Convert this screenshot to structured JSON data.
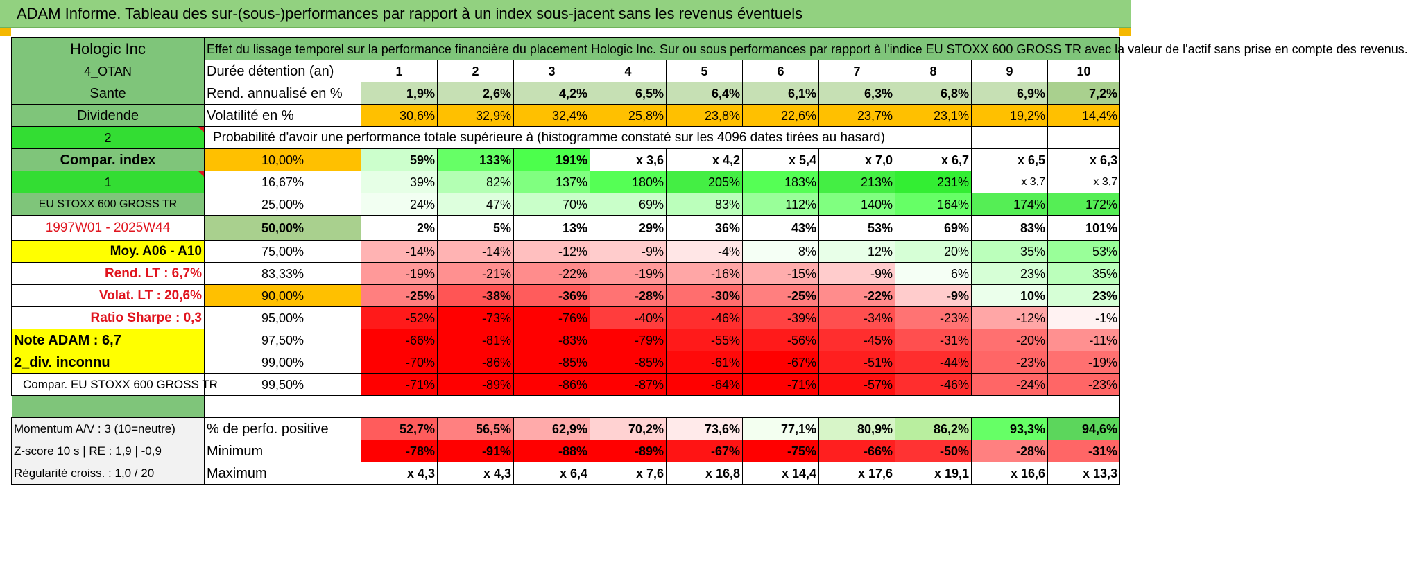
{
  "title": "ADAM Informe. Tableau des sur-(sous-)performances par rapport à un index sous-jacent sans les revenus éventuels",
  "company": "Hologic Inc",
  "description": "Effet du lissage temporel sur la performance financière du placement Hologic Inc. Sur ou sous performances par rapport à l'indice EU STOXX 600 GROSS TR avec la valeur de l'actif sans prise en compte des revenus.",
  "duration": {
    "side_label": "4_OTAN",
    "label": "Durée détention (an)",
    "years": [
      "1",
      "2",
      "3",
      "4",
      "5",
      "6",
      "7",
      "8",
      "9",
      "10"
    ]
  },
  "rend": {
    "side_label": "Sante",
    "label": "Rend. annualisé en %",
    "values": [
      "1,9%",
      "2,6%",
      "4,2%",
      "6,5%",
      "6,4%",
      "6,1%",
      "6,3%",
      "6,8%",
      "6,9%",
      "7,2%"
    ]
  },
  "vol": {
    "side_label": "Dividende",
    "label": "Volatilité en %",
    "values": [
      "30,6%",
      "32,9%",
      "32,4%",
      "25,8%",
      "23,8%",
      "22,6%",
      "23,7%",
      "23,1%",
      "19,2%",
      "14,4%"
    ]
  },
  "prob": {
    "side_label": "2",
    "label": "Probabilité d'avoir une performance totale supérieure à (histogramme constaté sur les 4096 dates tirées au hasard)"
  },
  "rows": [
    {
      "side": "Compar. index",
      "pct": "10,00%",
      "values": [
        "59%",
        "133%",
        "191%",
        "x 3,6",
        "x 4,2",
        "x 5,4",
        "x 7,0",
        "x 6,7",
        "x 6,5",
        "x 6,3"
      ]
    },
    {
      "side": "1",
      "pct": "16,67%",
      "values": [
        "39%",
        "82%",
        "137%",
        "180%",
        "205%",
        "183%",
        "213%",
        "231%",
        "x 3,7",
        "x 3,7"
      ]
    },
    {
      "side": "EU STOXX 600 GROSS TR",
      "pct": "25,00%",
      "values": [
        "24%",
        "47%",
        "70%",
        "69%",
        "83%",
        "112%",
        "140%",
        "164%",
        "174%",
        "172%"
      ]
    },
    {
      "side": "1997W01 - 2025W44",
      "pct": "50,00%",
      "values": [
        "2%",
        "5%",
        "13%",
        "29%",
        "36%",
        "43%",
        "53%",
        "69%",
        "83%",
        "101%"
      ]
    },
    {
      "side": "Moy. A06 - A10",
      "pct": "75,00%",
      "values": [
        "-14%",
        "-14%",
        "-12%",
        "-9%",
        "-4%",
        "8%",
        "12%",
        "20%",
        "35%",
        "53%"
      ]
    },
    {
      "side": "Rend. LT :    6,7%",
      "pct": "83,33%",
      "values": [
        "-19%",
        "-21%",
        "-22%",
        "-19%",
        "-16%",
        "-15%",
        "-9%",
        "6%",
        "23%",
        "35%"
      ]
    },
    {
      "side": "Volat. LT :    20,6%",
      "pct": "90,00%",
      "values": [
        "-25%",
        "-38%",
        "-36%",
        "-28%",
        "-30%",
        "-25%",
        "-22%",
        "-9%",
        "10%",
        "23%"
      ]
    },
    {
      "side": "Ratio Sharpe :    0,3",
      "pct": "95,00%",
      "values": [
        "-52%",
        "-73%",
        "-76%",
        "-40%",
        "-46%",
        "-39%",
        "-34%",
        "-23%",
        "-12%",
        "-1%"
      ]
    },
    {
      "side": "Note ADAM : 6,7",
      "pct": "97,50%",
      "values": [
        "-66%",
        "-81%",
        "-83%",
        "-79%",
        "-55%",
        "-56%",
        "-45%",
        "-31%",
        "-20%",
        "-11%"
      ]
    },
    {
      "side": "2_div. inconnu",
      "pct": "99,00%",
      "values": [
        "-70%",
        "-86%",
        "-85%",
        "-85%",
        "-61%",
        "-67%",
        "-51%",
        "-44%",
        "-23%",
        "-19%"
      ]
    },
    {
      "side": "Compar. EU STOXX 600 GROSS TR",
      "pct": "99,50%",
      "values": [
        "-71%",
        "-89%",
        "-86%",
        "-87%",
        "-64%",
        "-71%",
        "-57%",
        "-46%",
        "-24%",
        "-23%"
      ]
    }
  ],
  "summary": [
    {
      "side": "Momentum A/V : 3 (10=neutre)",
      "label": "% de perfo. positive",
      "values": [
        "52,7%",
        "56,5%",
        "62,9%",
        "70,2%",
        "73,6%",
        "77,1%",
        "80,9%",
        "86,2%",
        "93,3%",
        "94,6%"
      ]
    },
    {
      "side": "Z-score 10 s | RE : 1,9 | -0,9",
      "label": "Minimum",
      "values": [
        "-78%",
        "-91%",
        "-88%",
        "-89%",
        "-67%",
        "-75%",
        "-66%",
        "-50%",
        "-28%",
        "-31%"
      ]
    },
    {
      "side": "Régularité croiss. : 1,0 / 20",
      "label": "Maximum",
      "values": [
        "x 4,3",
        "x 4,3",
        "x 6,4",
        "x 7,6",
        "x 16,8",
        "x 14,4",
        "x 17,6",
        "x 19,1",
        "x 16,6",
        "x 13,3"
      ]
    }
  ],
  "colors": {
    "rend": [
      "#c6e0b4",
      "#c6e0b4",
      "#c6e0b4",
      "#c6e0b4",
      "#c6e0b4",
      "#c6e0b4",
      "#c6e0b4",
      "#c6e0b4",
      "#c6e0b4",
      "#a9d08e"
    ],
    "vol": [
      "#ffc000",
      "#ffc000",
      "#ffc000",
      "#ffc000",
      "#ffc000",
      "#ffc000",
      "#ffc000",
      "#ffc000",
      "#ffc000",
      "#ffc000"
    ],
    "rows": [
      [
        "#ccffcc",
        "#66ff66",
        "#4cff4c",
        "#ffffff",
        "#ffffff",
        "#ffffff",
        "#ffffff",
        "#ffffff",
        "#ffffff",
        "#ffffff"
      ],
      [
        "#e6ffe6",
        "#b3ffb3",
        "#80ff80",
        "#55ff55",
        "#44ee44",
        "#55ff55",
        "#44ee44",
        "#33ee33",
        "#ffffff",
        "#ffffff"
      ],
      [
        "#f2fff2",
        "#ddffdd",
        "#c9ffc9",
        "#c9ffc9",
        "#bbffbb",
        "#99ff99",
        "#80ff80",
        "#66ff66",
        "#55ee55",
        "#55ee55"
      ],
      [
        "#ffffff",
        "#ffffff",
        "#ffffff",
        "#ffffff",
        "#ffffff",
        "#ffffff",
        "#ffffff",
        "#ffffff",
        "#ffffff",
        "#ffffff"
      ],
      [
        "#ffb3b3",
        "#ffb3b3",
        "#ffbfbf",
        "#ffcccc",
        "#ffe6e6",
        "#f5fff5",
        "#e8ffe8",
        "#d6ffd6",
        "#bbffbb",
        "#99ff99"
      ],
      [
        "#ff9999",
        "#ff9090",
        "#ff8c8c",
        "#ff9999",
        "#ffa6a6",
        "#ffadad",
        "#ffcccc",
        "#f5fff5",
        "#d6ffd6",
        "#bbffbb"
      ],
      [
        "#ff7f7f",
        "#ff5555",
        "#ff5c5c",
        "#ff7373",
        "#ff6e6e",
        "#ff7f7f",
        "#ff8c8c",
        "#ffcccc",
        "#ebffeb",
        "#d6ffd6"
      ],
      [
        "#ff1a1a",
        "#ff0000",
        "#ff0000",
        "#ff3d3d",
        "#ff2e2e",
        "#ff4242",
        "#ff4f4f",
        "#ff7373",
        "#ffa6a6",
        "#fff2f2"
      ],
      [
        "#ff0000",
        "#ff0000",
        "#ff0000",
        "#ff0000",
        "#ff1a1a",
        "#ff1a1a",
        "#ff2e2e",
        "#ff4f4f",
        "#ff7070",
        "#ff9090"
      ],
      [
        "#ff0000",
        "#ff0000",
        "#ff0000",
        "#ff0000",
        "#ff0a0a",
        "#ff0000",
        "#ff1f1f",
        "#ff2e2e",
        "#ff6666",
        "#ff7070"
      ],
      [
        "#ff0000",
        "#ff0000",
        "#ff0000",
        "#ff0000",
        "#ff0000",
        "#ff0000",
        "#ff1010",
        "#ff2e2e",
        "#ff6666",
        "#ff6666"
      ]
    ],
    "summary": [
      [
        "#ff5c5c",
        "#ff8080",
        "#ffaaaa",
        "#ffd2d2",
        "#ffeaea",
        "#f3fff0",
        "#d7f5c8",
        "#b9ee9f",
        "#66ff66",
        "#5cd65c"
      ],
      [
        "#ff0000",
        "#ff0000",
        "#ff0000",
        "#ff0000",
        "#ff1414",
        "#ff0000",
        "#ff1f1f",
        "#ff3333",
        "#ff8080",
        "#ff6666"
      ],
      [
        "#ffffff",
        "#ffffff",
        "#ffffff",
        "#ffffff",
        "#ffffff",
        "#ffffff",
        "#ffffff",
        "#ffffff",
        "#ffffff",
        "#ffffff"
      ]
    ]
  }
}
